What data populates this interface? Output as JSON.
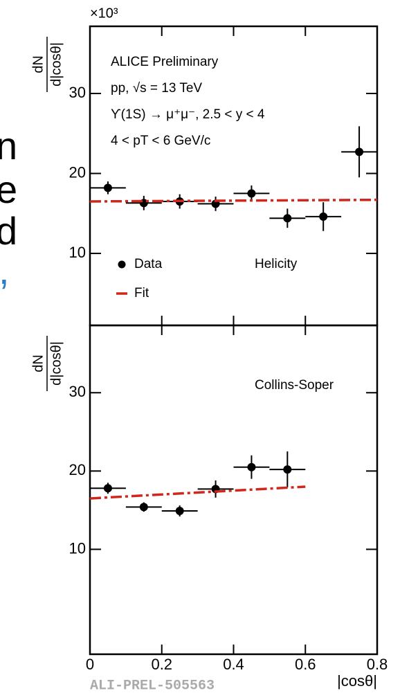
{
  "chart_data": [
    {
      "type": "errorbar",
      "multiplier": "×10³",
      "ylabel_numerator": "dN",
      "ylabel_denominator": "d|cosθ|",
      "annotations": [
        "ALICE Preliminary",
        "pp, √s = 13 TeV",
        "ϒ(1S) → μ⁺μ⁻, 2.5 < y < 4",
        "4 < pT < 6 GeV/c"
      ],
      "panel_label": "Helicity",
      "xlim": [
        0,
        0.8
      ],
      "xticks": [
        0,
        0.2,
        0.4,
        0.6,
        0.8
      ],
      "ylim": [
        1.0,
        38.4
      ],
      "yticks": [
        10,
        20,
        30
      ],
      "series": [
        {
          "name": "Data",
          "color": "#000000",
          "kind": "points",
          "x": [
            0.05,
            0.15,
            0.25,
            0.35,
            0.45,
            0.55,
            0.65,
            0.75
          ],
          "x_errors": [
            0.05,
            0.05,
            0.05,
            0.05,
            0.05,
            0.05,
            0.05,
            0.05
          ],
          "values": [
            18.2,
            16.3,
            16.5,
            16.2,
            17.5,
            14.4,
            14.6,
            22.7
          ],
          "errors": [
            0.8,
            0.9,
            0.9,
            0.9,
            1.0,
            1.2,
            1.8,
            3.2
          ]
        },
        {
          "name": "Fit",
          "color": "#d0261b",
          "kind": "line",
          "x": [
            0,
            0.8
          ],
          "values": [
            16.5,
            16.7
          ]
        }
      ]
    },
    {
      "type": "errorbar",
      "ylabel_numerator": "dN",
      "ylabel_denominator": "d|cosθ|",
      "panel_label": "Collins-Soper",
      "xlabel": "|cosθ|",
      "xlim": [
        0,
        0.8
      ],
      "xticks": [
        0,
        0.2,
        0.4,
        0.6,
        0.8
      ],
      "ylim": [
        -3.4,
        38.6
      ],
      "yticks": [
        10,
        20,
        30
      ],
      "series": [
        {
          "color": "#000000",
          "kind": "points",
          "x": [
            0.05,
            0.15,
            0.25,
            0.35,
            0.45,
            0.55
          ],
          "x_errors": [
            0.05,
            0.05,
            0.05,
            0.05,
            0.05,
            0.05
          ],
          "values": [
            17.8,
            15.4,
            14.9,
            17.7,
            20.5,
            20.2
          ],
          "errors": [
            0.7,
            0.6,
            0.7,
            1.1,
            1.5,
            2.3
          ]
        },
        {
          "color": "#d0261b",
          "kind": "line",
          "x": [
            0,
            0.6
          ],
          "values": [
            16.5,
            18.0
          ]
        }
      ]
    }
  ],
  "footer": "ALI-PREL-505563",
  "side_fragments": [
    "n",
    "e",
    "d",
    ","
  ]
}
